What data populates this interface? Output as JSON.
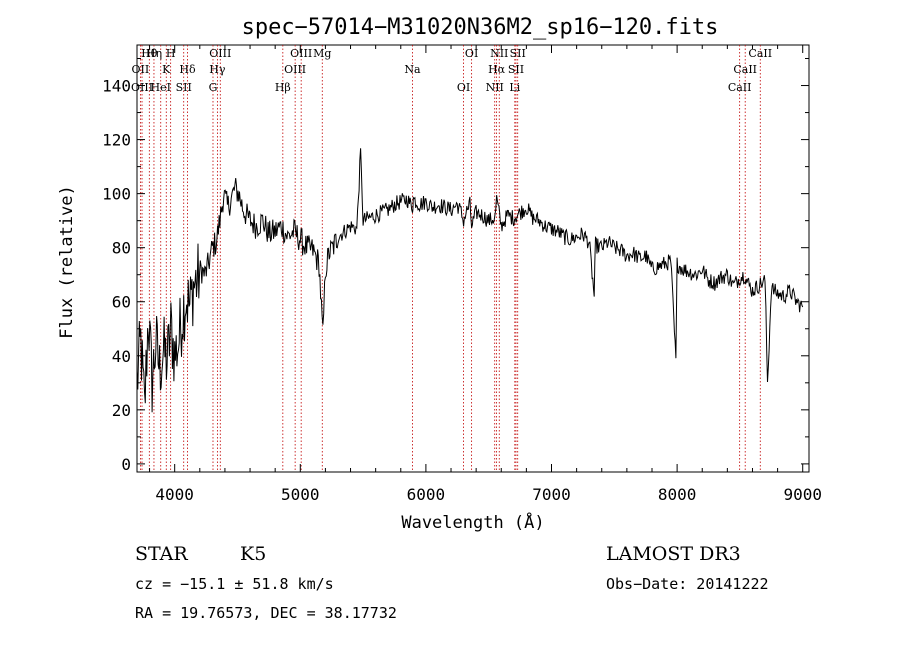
{
  "chart_data": {
    "type": "line",
    "title": "spec−57014−M31020N36M2_sp16−120.fits",
    "xlabel": "Wavelength (Å)",
    "ylabel": "Flux (relative)",
    "xlim": [
      3700,
      9050
    ],
    "ylim": [
      -3,
      155
    ],
    "x_ticks": [
      4000,
      5000,
      6000,
      7000,
      8000,
      9000
    ],
    "x_tick_labels": [
      "4000",
      "5000",
      "6000",
      "7000",
      "8000",
      "9000"
    ],
    "y_ticks": [
      0,
      20,
      40,
      60,
      80,
      100,
      120,
      140
    ],
    "y_tick_labels": [
      "0",
      "20",
      "40",
      "60",
      "80",
      "100",
      "120",
      "140"
    ],
    "series": [
      {
        "name": "spectrum",
        "color": "#000000",
        "x": [
          3700,
          3730,
          3760,
          3790,
          3820,
          3850,
          3880,
          3910,
          3940,
          3970,
          4000,
          4030,
          4060,
          4090,
          4120,
          4150,
          4180,
          4210,
          4240,
          4270,
          4300,
          4330,
          4360,
          4390,
          4420,
          4450,
          4480,
          4510,
          4540,
          4570,
          4600,
          4650,
          4700,
          4750,
          4800,
          4850,
          4900,
          4950,
          5000,
          5050,
          5100,
          5150,
          5180,
          5200,
          5230,
          5260,
          5300,
          5350,
          5400,
          5450,
          5480,
          5500,
          5550,
          5600,
          5650,
          5700,
          5750,
          5800,
          5850,
          5893,
          5900,
          5950,
          6000,
          6050,
          6100,
          6150,
          6200,
          6250,
          6280,
          6300,
          6320,
          6350,
          6364,
          6400,
          6450,
          6500,
          6550,
          6563,
          6600,
          6650,
          6700,
          6750,
          6800,
          6850,
          6900,
          6950,
          7000,
          7050,
          7100,
          7150,
          7200,
          7250,
          7300,
          7340,
          7350,
          7400,
          7450,
          7500,
          7550,
          7600,
          7650,
          7700,
          7750,
          7800,
          7850,
          7900,
          7950,
          7990,
          8000,
          8050,
          8100,
          8150,
          8200,
          8250,
          8300,
          8350,
          8400,
          8450,
          8500,
          8542,
          8550,
          8600,
          8650,
          8700,
          8720,
          8750,
          8800,
          8850,
          8900,
          8950,
          9000
        ],
        "y": [
          30,
          45,
          20,
          55,
          30,
          45,
          35,
          42,
          38,
          50,
          40,
          45,
          55,
          62,
          58,
          66,
          68,
          72,
          70,
          74,
          80,
          82,
          90,
          100,
          95,
          98,
          102,
          100,
          95,
          92,
          90,
          88,
          90,
          85,
          86,
          88,
          84,
          86,
          83,
          80,
          79,
          74,
          47,
          72,
          78,
          80,
          84,
          86,
          88,
          87,
          115,
          90,
          91,
          92,
          93,
          94,
          96,
          97,
          98,
          95,
          98,
          96,
          97,
          95,
          96,
          95,
          94,
          96,
          93,
          90,
          93,
          96,
          88,
          93,
          92,
          90,
          91,
          98,
          88,
          92,
          91,
          93,
          95,
          91,
          90,
          88,
          87,
          86,
          84,
          83,
          84,
          85,
          82,
          62,
          81,
          80,
          82,
          80,
          79,
          77,
          78,
          76,
          77,
          72,
          73,
          74,
          75,
          38,
          74,
          72,
          71,
          70,
          72,
          68,
          67,
          69,
          70,
          66,
          69,
          70,
          68,
          64,
          66,
          68,
          30,
          65,
          63,
          62,
          64,
          60,
          58
        ]
      }
    ],
    "spectral_lines": [
      {
        "label": "Hθ",
        "wavelength": 3798
      },
      {
        "label": "OII",
        "wavelength": 3727
      },
      {
        "label": "OIII",
        "wavelength": 3740
      },
      {
        "label": "Hη",
        "wavelength": 3835
      },
      {
        "label": "K",
        "wavelength": 3933
      },
      {
        "label": "HeI",
        "wavelength": 3889
      },
      {
        "label": "H",
        "wavelength": 3968
      },
      {
        "label": "Hδ",
        "wavelength": 4102
      },
      {
        "label": "SII",
        "wavelength": 4072
      },
      {
        "label": "OIII",
        "wavelength": 4363
      },
      {
        "label": "Hγ",
        "wavelength": 4340
      },
      {
        "label": "G",
        "wavelength": 4305
      },
      {
        "label": "OIII",
        "wavelength": 5007
      },
      {
        "label": "OIII",
        "wavelength": 4959
      },
      {
        "label": "Hβ",
        "wavelength": 4861
      },
      {
        "label": "Mg",
        "wavelength": 5175
      },
      {
        "label": "Na",
        "wavelength": 5893
      },
      {
        "label": "OI",
        "wavelength": 6300
      },
      {
        "label": "OI",
        "wavelength": 6364
      },
      {
        "label": "Hα",
        "wavelength": 6563
      },
      {
        "label": "NII",
        "wavelength": 6548
      },
      {
        "label": "NII",
        "wavelength": 6584
      },
      {
        "label": "SII",
        "wavelength": 6717
      },
      {
        "label": "Li",
        "wavelength": 6708
      },
      {
        "label": "SII",
        "wavelength": 6731
      },
      {
        "label": "CaII",
        "wavelength": 8542
      },
      {
        "label": "CaII",
        "wavelength": 8498
      },
      {
        "label": "CaII",
        "wavelength": 8662
      }
    ],
    "line_color": "#c00000"
  },
  "info": {
    "class": "STAR",
    "subclass": "K5",
    "survey": "LAMOST DR3",
    "cz": "cz = −15.1 ± 51.8 km/s",
    "obs_date": "Obs−Date: 20141222",
    "coords": "RA =  19.76573, DEC =  38.17732"
  }
}
